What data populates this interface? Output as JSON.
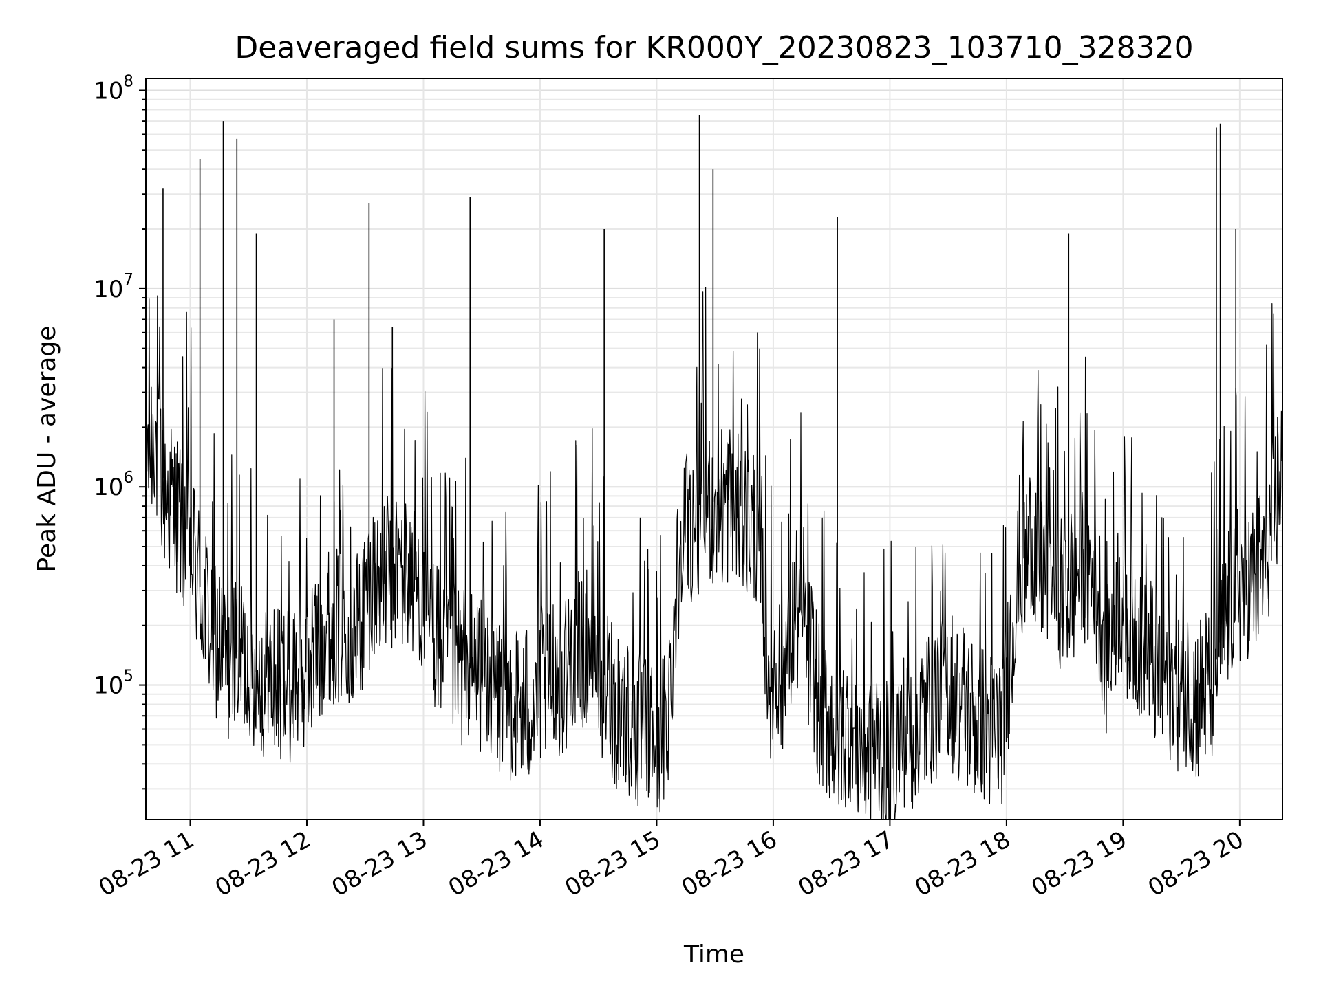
{
  "chart_data": {
    "type": "line",
    "title": "Deaveraged field sums for KR000Y_20230823_103710_328320",
    "xlabel": "Time",
    "ylabel": "Peak ADU - average",
    "yscale": "log",
    "xlim": [
      "2023-08-23 10:37:10",
      "2023-08-23 20:22:00"
    ],
    "ylim": [
      21000,
      115000000
    ],
    "grid": true,
    "x_ticks": [
      "08-23 11",
      "08-23 12",
      "08-23 13",
      "08-23 14",
      "08-23 15",
      "08-23 16",
      "08-23 17",
      "08-23 18",
      "08-23 19",
      "08-23 20"
    ],
    "y_ticks": [
      {
        "base": "10",
        "exp": "5",
        "value": 100000
      },
      {
        "base": "10",
        "exp": "6",
        "value": 1000000
      },
      {
        "base": "10",
        "exp": "7",
        "value": 10000000
      },
      {
        "base": "10",
        "exp": "8",
        "value": 100000000
      }
    ],
    "line_color": "#000000",
    "series": [
      {
        "x": [
          "2023-08-23 10:37",
          "2023-08-23 10:41",
          "2023-08-23 10:47",
          "2023-08-23 10:53",
          "2023-08-23 10:59",
          "2023-08-23 11:06",
          "2023-08-23 11:12",
          "2023-08-23 11:18",
          "2023-08-23 11:25",
          "2023-08-23 11:32",
          "2023-08-23 11:38",
          "2023-08-23 11:45",
          "2023-08-23 11:52",
          "2023-08-23 11:58",
          "2023-08-23 12:05",
          "2023-08-23 12:12",
          "2023-08-23 12:18",
          "2023-08-23 12:25",
          "2023-08-23 12:32",
          "2023-08-23 12:38",
          "2023-08-23 12:45",
          "2023-08-23 12:52",
          "2023-08-23 12:58",
          "2023-08-23 13:05",
          "2023-08-23 13:12",
          "2023-08-23 13:18",
          "2023-08-23 13:25",
          "2023-08-23 13:32",
          "2023-08-23 13:38",
          "2023-08-23 13:45",
          "2023-08-23 13:52",
          "2023-08-23 13:58",
          "2023-08-23 14:05",
          "2023-08-23 14:12",
          "2023-08-23 14:18",
          "2023-08-23 14:25",
          "2023-08-23 14:32",
          "2023-08-23 14:38",
          "2023-08-23 14:45",
          "2023-08-23 14:52",
          "2023-08-23 14:58",
          "2023-08-23 15:05",
          "2023-08-23 15:12",
          "2023-08-23 15:18",
          "2023-08-23 15:25",
          "2023-08-23 15:32",
          "2023-08-23 15:38",
          "2023-08-23 15:45",
          "2023-08-23 15:52",
          "2023-08-23 15:58",
          "2023-08-23 16:05",
          "2023-08-23 16:12",
          "2023-08-23 16:18",
          "2023-08-23 16:25",
          "2023-08-23 16:32",
          "2023-08-23 16:38",
          "2023-08-23 16:45",
          "2023-08-23 16:52",
          "2023-08-23 16:58",
          "2023-08-23 17:05",
          "2023-08-23 17:12",
          "2023-08-23 17:18",
          "2023-08-23 17:25",
          "2023-08-23 17:32",
          "2023-08-23 17:38",
          "2023-08-23 17:45",
          "2023-08-23 17:52",
          "2023-08-23 17:58",
          "2023-08-23 18:05",
          "2023-08-23 18:12",
          "2023-08-23 18:18",
          "2023-08-23 18:25",
          "2023-08-23 18:32",
          "2023-08-23 18:38",
          "2023-08-23 18:45",
          "2023-08-23 18:52",
          "2023-08-23 18:58",
          "2023-08-23 19:05",
          "2023-08-23 19:12",
          "2023-08-23 19:18",
          "2023-08-23 19:25",
          "2023-08-23 19:32",
          "2023-08-23 19:38",
          "2023-08-23 19:45",
          "2023-08-23 19:52",
          "2023-08-23 19:58",
          "2023-08-23 20:05",
          "2023-08-23 20:12",
          "2023-08-23 20:18",
          "2023-08-23 20:22"
        ],
        "y": [
          1500000,
          1800000,
          1000000,
          700000,
          600000,
          280000,
          180000,
          130000,
          150000,
          120000,
          110000,
          100000,
          110000,
          130000,
          150000,
          200000,
          210000,
          180000,
          300000,
          350000,
          400000,
          380000,
          300000,
          200000,
          150000,
          130000,
          120000,
          110000,
          90000,
          80000,
          75000,
          95000,
          120000,
          110000,
          150000,
          180000,
          120000,
          80000,
          70000,
          60000,
          55000,
          60000,
          500000,
          700000,
          900000,
          800000,
          850000,
          700000,
          600000,
          120000,
          110000,
          250000,
          150000,
          80000,
          60000,
          55000,
          50000,
          48000,
          45000,
          55000,
          60000,
          70000,
          90000,
          100000,
          80000,
          65000,
          60000,
          60000,
          300000,
          500000,
          400000,
          350000,
          300000,
          400000,
          350000,
          150000,
          300000,
          200000,
          150000,
          120000,
          100000,
          95000,
          85000,
          100000,
          200000,
          350000,
          300000,
          400000,
          800000,
          1500000
        ]
      }
    ],
    "peaks": [
      {
        "x": "2023-08-23 10:46",
        "y": 32000000
      },
      {
        "x": "2023-08-23 11:05",
        "y": 45000000
      },
      {
        "x": "2023-08-23 11:17",
        "y": 70000000
      },
      {
        "x": "2023-08-23 11:24",
        "y": 57000000
      },
      {
        "x": "2023-08-23 11:34",
        "y": 19000000
      },
      {
        "x": "2023-08-23 12:14",
        "y": 7000000
      },
      {
        "x": "2023-08-23 12:32",
        "y": 27000000
      },
      {
        "x": "2023-08-23 12:44",
        "y": 6400000
      },
      {
        "x": "2023-08-23 13:24",
        "y": 29000000
      },
      {
        "x": "2023-08-23 14:33",
        "y": 20000000
      },
      {
        "x": "2023-08-23 15:22",
        "y": 75000000
      },
      {
        "x": "2023-08-23 15:29",
        "y": 40000000
      },
      {
        "x": "2023-08-23 16:33",
        "y": 23000000
      },
      {
        "x": "2023-08-23 18:32",
        "y": 19000000
      },
      {
        "x": "2023-08-23 19:48",
        "y": 65000000
      },
      {
        "x": "2023-08-23 19:50",
        "y": 68000000
      },
      {
        "x": "2023-08-23 19:58",
        "y": 20000000
      }
    ]
  }
}
